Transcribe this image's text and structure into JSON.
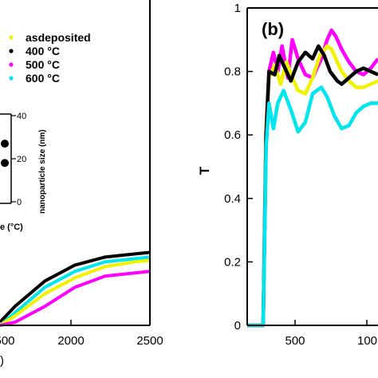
{
  "chart_data": [
    {
      "type": "line",
      "panel": "left",
      "xlabel_fragment": ")",
      "xticks": [
        "500",
        "2000",
        "2500"
      ],
      "xlim": [
        1500,
        2500
      ],
      "ylim": [
        0,
        1
      ],
      "legend": {
        "placement": "top",
        "entries": [
          {
            "label": "asdeposited",
            "color": "#f2f200"
          },
          {
            "label": "400 °C",
            "color": "#000000"
          },
          {
            "label": "500 °C",
            "color": "#ff00ff"
          },
          {
            "label": "600 °C",
            "color": "#00e5ee"
          }
        ]
      },
      "inset": {
        "ylabel": "nanoparticle size (nm)",
        "yticks": [
          "0",
          "20",
          "40"
        ],
        "ylim": [
          0,
          40
        ],
        "xlabel_fragment": "e (°C)",
        "points": [
          {
            "value": 27
          },
          {
            "value": 18
          }
        ]
      },
      "series": [
        {
          "name": "400 °C",
          "color": "#000000",
          "x": [
            1500,
            1600,
            1800,
            2000,
            2200,
            2400,
            2500
          ],
          "y": [
            0.01,
            0.06,
            0.14,
            0.19,
            0.215,
            0.225,
            0.23
          ]
        },
        {
          "name": "600 °C",
          "color": "#00e5ee",
          "x": [
            1500,
            1600,
            1800,
            2000,
            2200,
            2400,
            2500
          ],
          "y": [
            0.0,
            0.04,
            0.12,
            0.17,
            0.2,
            0.21,
            0.215
          ]
        },
        {
          "name": "asdeposited",
          "color": "#f2f200",
          "x": [
            1500,
            1600,
            1800,
            2000,
            2200,
            2400,
            2500
          ],
          "y": [
            0.0,
            0.03,
            0.1,
            0.15,
            0.185,
            0.2,
            0.205
          ]
        },
        {
          "name": "500 °C",
          "color": "#ff00ff",
          "x": [
            1500,
            1600,
            1800,
            2000,
            2200,
            2400,
            2500
          ],
          "y": [
            0.0,
            0.01,
            0.06,
            0.12,
            0.155,
            0.165,
            0.17
          ]
        }
      ]
    },
    {
      "type": "line",
      "panel": "right",
      "label": "(b)",
      "ylabel": "T",
      "xticks": [
        "500",
        "100"
      ],
      "yticks": [
        "0",
        "0.2",
        "0.4",
        "0.6",
        "0.8",
        "1"
      ],
      "ylim": [
        0,
        1
      ],
      "xlim": [
        250,
        1150
      ],
      "series": [
        {
          "name": "500 °C",
          "color": "#ff00ff",
          "x": [
            250,
            340,
            360,
            380,
            400,
            430,
            460,
            490,
            530,
            560,
            600,
            650,
            700,
            760,
            800,
            830,
            860,
            900,
            950,
            1000,
            1050,
            1100,
            1150
          ],
          "y": [
            0.0,
            0.0,
            0.0,
            0.62,
            0.8,
            0.86,
            0.8,
            0.88,
            0.78,
            0.9,
            0.84,
            0.79,
            0.78,
            0.84,
            0.9,
            0.93,
            0.91,
            0.87,
            0.83,
            0.8,
            0.79,
            0.81,
            0.84
          ]
        },
        {
          "name": "asdeposited",
          "color": "#f2f200",
          "x": [
            250,
            340,
            360,
            380,
            400,
            440,
            480,
            520,
            560,
            600,
            650,
            700,
            750,
            800,
            830,
            860,
            900,
            950,
            1000,
            1050,
            1100,
            1150
          ],
          "y": [
            0.0,
            0.0,
            0.0,
            0.62,
            0.78,
            0.82,
            0.76,
            0.83,
            0.78,
            0.74,
            0.73,
            0.78,
            0.85,
            0.88,
            0.87,
            0.84,
            0.8,
            0.77,
            0.75,
            0.75,
            0.76,
            0.77
          ]
        },
        {
          "name": "400 °C",
          "color": "#000000",
          "x": [
            250,
            340,
            360,
            380,
            400,
            440,
            470,
            500,
            550,
            600,
            650,
            700,
            740,
            780,
            820,
            870,
            900,
            950,
            1000,
            1050,
            1100,
            1150
          ],
          "y": [
            0.0,
            0.0,
            0.0,
            0.6,
            0.8,
            0.79,
            0.85,
            0.82,
            0.77,
            0.83,
            0.86,
            0.84,
            0.88,
            0.85,
            0.8,
            0.77,
            0.76,
            0.78,
            0.8,
            0.81,
            0.8,
            0.79
          ]
        },
        {
          "name": "600 °C",
          "color": "#00e5ee",
          "x": [
            250,
            340,
            360,
            380,
            400,
            430,
            460,
            500,
            550,
            600,
            650,
            700,
            760,
            800,
            850,
            900,
            950,
            1000,
            1050,
            1100,
            1150
          ],
          "y": [
            0.0,
            0.0,
            0.0,
            0.56,
            0.7,
            0.62,
            0.7,
            0.74,
            0.68,
            0.61,
            0.64,
            0.73,
            0.75,
            0.72,
            0.66,
            0.62,
            0.63,
            0.67,
            0.69,
            0.7,
            0.7
          ]
        }
      ]
    }
  ]
}
